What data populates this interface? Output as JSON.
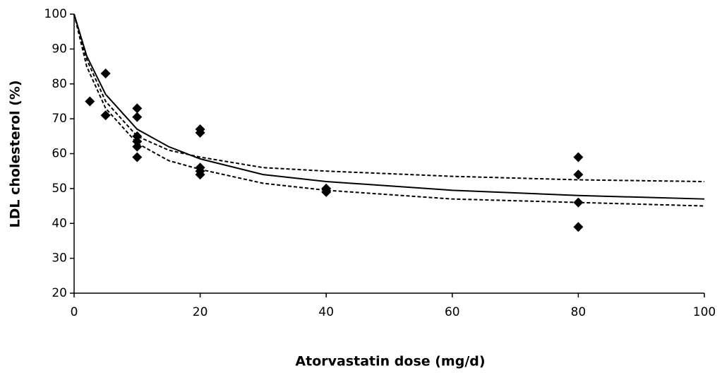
{
  "chart_data": {
    "type": "scatter",
    "x_label": "Atorvastatin dose (mg/d)",
    "y_label": "LDL cholesterol (%)",
    "xlim": [
      0,
      100
    ],
    "xticks": [
      0,
      20,
      40,
      60,
      80,
      100
    ],
    "ylim": [
      20,
      100
    ],
    "yticks": [
      20,
      30,
      40,
      50,
      60,
      70,
      80,
      90,
      100
    ],
    "grid": false,
    "series": [
      {
        "mode": "markers",
        "color": "#000000",
        "x": [
          2.5,
          5,
          5,
          10,
          10,
          10,
          10,
          10,
          10,
          20,
          20,
          20,
          20,
          20,
          40,
          40,
          80,
          80,
          80,
          80
        ],
        "values": [
          75,
          83,
          71,
          73,
          70.5,
          65,
          63.5,
          62,
          59,
          67,
          66,
          56,
          55,
          54,
          50,
          49,
          59,
          54,
          46,
          39
        ]
      },
      {
        "mode": "line",
        "dash": "solid",
        "color": "#000000",
        "x": [
          0,
          2,
          5,
          10,
          15,
          20,
          30,
          40,
          60,
          80,
          100
        ],
        "values": [
          100,
          88,
          77,
          67,
          62,
          58.5,
          54,
          52,
          49.5,
          48,
          47
        ]
      },
      {
        "mode": "line",
        "dash": "dashed",
        "color": "#000000",
        "x": [
          0,
          2,
          5,
          10,
          15,
          20,
          30,
          40,
          60,
          80,
          100
        ],
        "values": [
          100,
          87,
          75,
          65,
          61,
          59,
          56,
          55,
          53.5,
          52.5,
          52
        ]
      },
      {
        "mode": "line",
        "dash": "dashed",
        "color": "#000000",
        "x": [
          0,
          2,
          5,
          10,
          15,
          20,
          30,
          40,
          60,
          80,
          100
        ],
        "values": [
          100,
          85,
          73,
          63,
          58,
          55.5,
          51.5,
          49.5,
          47,
          46,
          45
        ]
      }
    ]
  }
}
